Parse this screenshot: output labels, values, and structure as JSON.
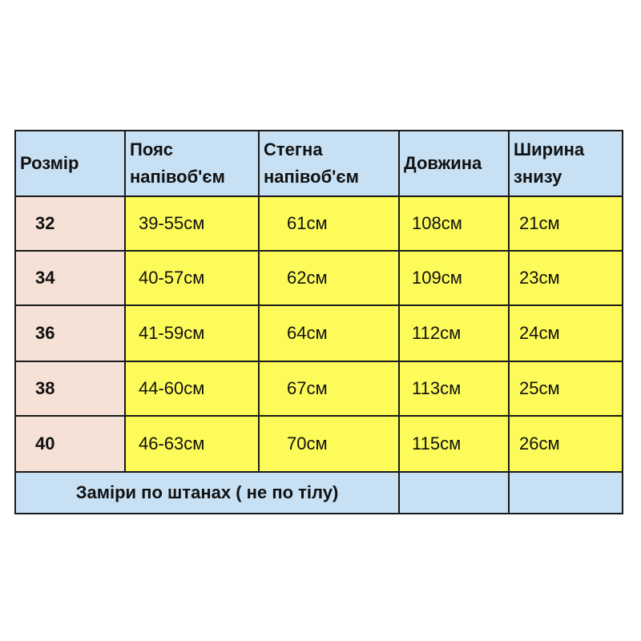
{
  "headers": [
    "Розмір",
    "Пояс напівоб'єм",
    "Стегна напівоб'єм",
    "Довжина",
    "Ширина знизу"
  ],
  "header_lines": {
    "size": [
      "Розмір"
    ],
    "waist": [
      "Пояс",
      "напівоб'єм"
    ],
    "hips": [
      "Стегна",
      "напівоб'єм"
    ],
    "length": [
      "Довжина"
    ],
    "bottom_width": [
      "Ширина",
      "знизу"
    ]
  },
  "rows": [
    {
      "size": "32",
      "waist": "39-55см",
      "hips": "61см",
      "length": "108см",
      "bottom_width": "21см"
    },
    {
      "size": "34",
      "waist": "40-57см",
      "hips": "62см",
      "length": "109см",
      "bottom_width": "23см"
    },
    {
      "size": "36",
      "waist": "41-59см",
      "hips": "64см",
      "length": "112см",
      "bottom_width": "24см"
    },
    {
      "size": "38",
      "waist": "44-60см",
      "hips": "67см",
      "length": "113см",
      "bottom_width": "25см"
    },
    {
      "size": "40",
      "waist": "46-63см",
      "hips": "70см",
      "length": "115см",
      "bottom_width": "26см"
    }
  ],
  "footer_note": "Заміри по штанах ( не по тілу)",
  "colors": {
    "header": "#c7e0f3",
    "size_column": "#f6e1d7",
    "values": "#fdfb5a",
    "border": "#1a1a1a"
  }
}
